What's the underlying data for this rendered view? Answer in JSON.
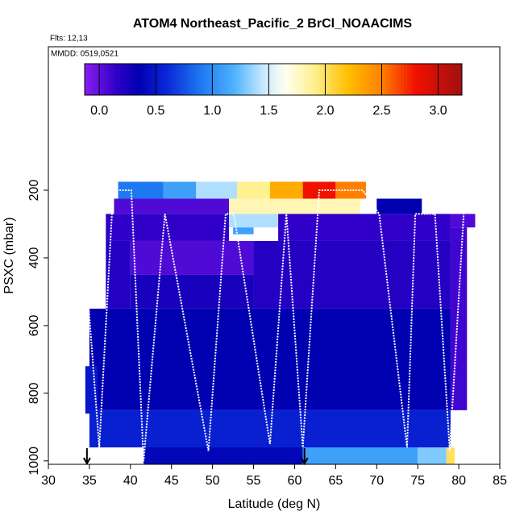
{
  "chart_data": {
    "type": "curtain",
    "title": "ATOM4 Northeast_Pacific_2 BrCl_NOAACIMS",
    "subtitle": "Flts: 12,13",
    "annotation": "MMDD: 0519,0521",
    "x_label": "Latitude (deg N)",
    "y_label": "PSXC (mbar)",
    "xlim": [
      30,
      85
    ],
    "xticks": [
      30,
      35,
      40,
      45,
      50,
      55,
      60,
      65,
      70,
      75,
      80,
      85
    ],
    "ylim": [
      1010,
      -224
    ],
    "yticks": [
      200,
      400,
      600,
      800,
      1000
    ],
    "clim": [
      -0.13,
      3.21
    ],
    "cticks": [
      {
        "value": 0,
        "label": "0.0"
      },
      0.5,
      {
        "value": 1,
        "label": "1.0"
      },
      1.5,
      {
        "value": 2,
        "label": "2.0"
      },
      2.5,
      {
        "value": 3,
        "label": "3.0"
      }
    ],
    "colorscale": [
      [
        -0.13,
        "#8a1cf0"
      ],
      [
        0.15,
        "#3000c8"
      ],
      [
        0.35,
        "#0000b0"
      ],
      [
        0.6,
        "#0a28d8"
      ],
      [
        0.9,
        "#1e78f0"
      ],
      [
        1.2,
        "#50b4ff"
      ],
      [
        1.45,
        "#c8e8ff"
      ],
      [
        1.65,
        "#fffff0"
      ],
      [
        1.9,
        "#fff090"
      ],
      [
        2.2,
        "#ffc000"
      ],
      [
        2.5,
        "#ff8000"
      ],
      [
        2.8,
        "#f01000"
      ],
      [
        3.21,
        "#a01010"
      ]
    ],
    "cells": [
      [
        38.5,
        44,
        175,
        225,
        0.9
      ],
      [
        44,
        48,
        175,
        225,
        1.1
      ],
      [
        48,
        53,
        175,
        225,
        1.4
      ],
      [
        53,
        57,
        175,
        225,
        1.9
      ],
      [
        57,
        61,
        175,
        225,
        2.3
      ],
      [
        61,
        65,
        175,
        225,
        2.8
      ],
      [
        65,
        68.7,
        175,
        225,
        2.5
      ],
      [
        38,
        52,
        225,
        270,
        0.05
      ],
      [
        52,
        68,
        225,
        270,
        1.8
      ],
      [
        70,
        75.5,
        225,
        270,
        0.35
      ],
      [
        37,
        52,
        270,
        350,
        0.15
      ],
      [
        52,
        58,
        270,
        310,
        1.4
      ],
      [
        52.5,
        55,
        310,
        330,
        1.1
      ],
      [
        58,
        79,
        270,
        350,
        0.15
      ],
      [
        79,
        82,
        270,
        310,
        0.05
      ],
      [
        37,
        40,
        350,
        550,
        0.2
      ],
      [
        40,
        55,
        350,
        450,
        0.05
      ],
      [
        55,
        79,
        350,
        550,
        0.2
      ],
      [
        40,
        55,
        450,
        550,
        0.25
      ],
      [
        35,
        79,
        550,
        850,
        0.35
      ],
      [
        79,
        81,
        310,
        850,
        0.1
      ],
      [
        34.5,
        36,
        720,
        860,
        0.5
      ],
      [
        35,
        79,
        850,
        960,
        0.55
      ],
      [
        41.6,
        61,
        960,
        1010,
        0.4
      ],
      [
        61,
        75,
        960,
        1010,
        1.1
      ],
      [
        75,
        78.5,
        960,
        1010,
        1.3
      ],
      [
        78.5,
        79.5,
        960,
        1010,
        2.0
      ]
    ],
    "track": {
      "x": [
        34.9,
        36.2,
        37.9,
        40.1,
        41.6,
        44.2,
        49.5,
        51.6,
        52.6,
        57,
        59,
        61,
        63,
        68.3,
        70.3,
        73.7,
        74.7,
        77.1,
        78.9,
        80.6
      ],
      "y": [
        540,
        960,
        200,
        200,
        1000,
        270,
        970,
        270,
        270,
        950,
        270,
        960,
        200,
        200,
        270,
        960,
        270,
        270,
        970,
        270
      ]
    },
    "arrows_x": [
      34.7,
      61.2
    ]
  }
}
